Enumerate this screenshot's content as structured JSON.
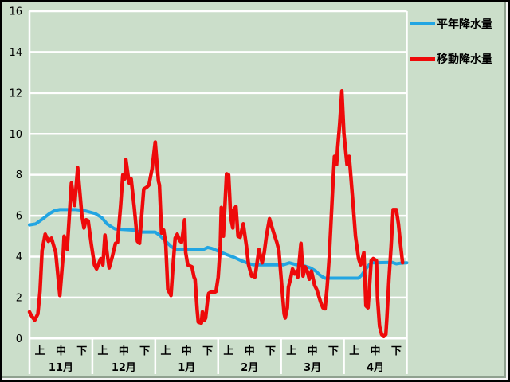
{
  "window": {
    "background_color": "#cbdeca",
    "gridline_color": "#ffffff",
    "text_color": "#000000"
  },
  "legend": {
    "items": [
      {
        "label": "平年降水量",
        "color": "#22a5e2"
      },
      {
        "label": "移動降水量",
        "color": "#ee0a0a"
      }
    ]
  },
  "chart_data": {
    "type": "line",
    "title": "",
    "xlabel": "",
    "ylabel": "",
    "ylim": [
      0,
      16
    ],
    "yticks": [
      0,
      2,
      4,
      6,
      8,
      10,
      12,
      14,
      16
    ],
    "grid": "horizontal-white-on-green",
    "legend_position": "right-outside-top",
    "x_axis": {
      "months": [
        "11月",
        "12月",
        "1月",
        "2月",
        "3月",
        "4月"
      ],
      "periods": [
        "上",
        "中",
        "下"
      ],
      "days_per_month": 30,
      "days_total": 180
    },
    "series": [
      {
        "name": "平年降水量",
        "color": "#22a5e2",
        "width": 4,
        "points": [
          [
            0,
            5.55
          ],
          [
            3,
            5.6
          ],
          [
            5,
            5.75
          ],
          [
            7,
            5.9
          ],
          [
            9.5,
            6.1
          ],
          [
            12,
            6.25
          ],
          [
            14.5,
            6.3
          ],
          [
            22,
            6.3
          ],
          [
            26,
            6.25
          ],
          [
            31.5,
            6.1
          ],
          [
            34.5,
            5.9
          ],
          [
            37,
            5.6
          ],
          [
            40,
            5.4
          ],
          [
            41,
            5.35
          ],
          [
            50,
            5.3
          ],
          [
            52.5,
            5.2
          ],
          [
            60,
            5.2
          ],
          [
            62,
            5.05
          ],
          [
            64.5,
            4.8
          ],
          [
            67.5,
            4.5
          ],
          [
            70,
            4.35
          ],
          [
            83,
            4.35
          ],
          [
            85,
            4.45
          ],
          [
            87,
            4.4
          ],
          [
            90.5,
            4.25
          ],
          [
            94,
            4.1
          ],
          [
            98,
            3.95
          ],
          [
            101,
            3.8
          ],
          [
            105,
            3.65
          ],
          [
            107,
            3.6
          ],
          [
            121,
            3.6
          ],
          [
            124,
            3.7
          ],
          [
            127.5,
            3.6
          ],
          [
            131,
            3.55
          ],
          [
            134,
            3.45
          ],
          [
            136.5,
            3.3
          ],
          [
            138.5,
            3.1
          ],
          [
            140,
            3.0
          ],
          [
            141,
            2.95
          ],
          [
            157,
            2.95
          ],
          [
            158.5,
            3.1
          ],
          [
            160.5,
            3.4
          ],
          [
            162,
            3.6
          ],
          [
            163.5,
            3.7
          ],
          [
            173,
            3.72
          ],
          [
            175,
            3.65
          ],
          [
            177,
            3.68
          ],
          [
            180,
            3.7
          ]
        ]
      },
      {
        "name": "移動降水量",
        "color": "#ee0a0a",
        "width": 4.5,
        "points": [
          [
            0,
            1.3
          ],
          [
            1,
            1.1
          ],
          [
            2.5,
            0.9
          ],
          [
            4,
            1.2
          ],
          [
            5,
            2.3
          ],
          [
            6,
            4.3
          ],
          [
            7.5,
            5.1
          ],
          [
            9,
            4.75
          ],
          [
            10.5,
            4.9
          ],
          [
            12.5,
            4.2
          ],
          [
            14.5,
            2.1
          ],
          [
            16,
            4.0
          ],
          [
            16.5,
            5.0
          ],
          [
            18,
            4.35
          ],
          [
            19,
            6.0
          ],
          [
            20,
            7.6
          ],
          [
            21.5,
            6.5
          ],
          [
            23,
            8.35
          ],
          [
            25,
            6.0
          ],
          [
            26,
            5.4
          ],
          [
            27,
            5.8
          ],
          [
            28,
            5.75
          ],
          [
            29.5,
            4.6
          ],
          [
            31,
            3.6
          ],
          [
            32,
            3.4
          ],
          [
            34,
            3.9
          ],
          [
            35,
            3.6
          ],
          [
            36,
            5.05
          ],
          [
            37,
            4.2
          ],
          [
            38,
            3.45
          ],
          [
            39.5,
            4.0
          ],
          [
            41,
            4.65
          ],
          [
            42,
            4.7
          ],
          [
            43.5,
            6.5
          ],
          [
            44.5,
            8.0
          ],
          [
            45.5,
            7.8
          ],
          [
            46,
            8.75
          ],
          [
            47.5,
            7.6
          ],
          [
            48.5,
            7.8
          ],
          [
            50,
            6.4
          ],
          [
            51.5,
            4.75
          ],
          [
            52.5,
            4.65
          ],
          [
            54.5,
            7.3
          ],
          [
            56,
            7.4
          ],
          [
            57,
            7.5
          ],
          [
            58.5,
            8.3
          ],
          [
            60,
            9.6
          ],
          [
            61.5,
            7.7
          ],
          [
            62,
            7.5
          ],
          [
            63,
            5.15
          ],
          [
            64,
            5.3
          ],
          [
            65,
            4.6
          ],
          [
            66,
            2.4
          ],
          [
            67.5,
            2.1
          ],
          [
            68.5,
            3.6
          ],
          [
            69.5,
            4.9
          ],
          [
            70.5,
            5.1
          ],
          [
            71.5,
            4.8
          ],
          [
            72.5,
            4.7
          ],
          [
            73,
            5.0
          ],
          [
            74,
            5.8
          ],
          [
            74.5,
            4.2
          ],
          [
            75.5,
            3.6
          ],
          [
            76.5,
            3.55
          ],
          [
            77.5,
            3.5
          ],
          [
            78.5,
            3.0
          ],
          [
            79,
            2.9
          ],
          [
            80,
            1.4
          ],
          [
            80.5,
            0.8
          ],
          [
            82,
            0.75
          ],
          [
            82.5,
            1.3
          ],
          [
            83.5,
            0.9
          ],
          [
            84,
            1.0
          ],
          [
            85,
            1.9
          ],
          [
            85.5,
            2.2
          ],
          [
            87,
            2.3
          ],
          [
            88,
            2.25
          ],
          [
            89,
            2.3
          ],
          [
            90,
            3.0
          ],
          [
            91,
            4.5
          ],
          [
            91.5,
            6.4
          ],
          [
            92.5,
            5.0
          ],
          [
            93,
            6.0
          ],
          [
            94,
            8.05
          ],
          [
            95,
            8.0
          ],
          [
            95.5,
            7.0
          ],
          [
            96,
            5.9
          ],
          [
            97,
            5.4
          ],
          [
            97.5,
            6.3
          ],
          [
            98.5,
            6.45
          ],
          [
            99.5,
            5.0
          ],
          [
            100.5,
            4.95
          ],
          [
            102,
            5.6
          ],
          [
            103.5,
            4.5
          ],
          [
            104.5,
            3.6
          ],
          [
            106,
            3.05
          ],
          [
            106.5,
            3.1
          ],
          [
            107.5,
            3.0
          ],
          [
            108,
            3.3
          ],
          [
            109.5,
            4.35
          ],
          [
            111,
            3.7
          ],
          [
            112,
            4.2
          ],
          [
            113,
            5.0
          ],
          [
            114.5,
            5.85
          ],
          [
            115.5,
            5.5
          ],
          [
            117,
            5.0
          ],
          [
            118,
            4.7
          ],
          [
            119,
            4.3
          ],
          [
            120,
            3.0
          ],
          [
            121.5,
            1.2
          ],
          [
            122,
            1.0
          ],
          [
            123,
            1.5
          ],
          [
            123.5,
            2.5
          ],
          [
            124.5,
            2.9
          ],
          [
            125.5,
            3.4
          ],
          [
            126.5,
            3.15
          ],
          [
            127.5,
            3.3
          ],
          [
            128,
            3.0
          ],
          [
            129.5,
            4.65
          ],
          [
            130.5,
            3.05
          ],
          [
            131.5,
            3.5
          ],
          [
            132.5,
            3.3
          ],
          [
            133.5,
            2.9
          ],
          [
            134.5,
            3.3
          ],
          [
            135.5,
            2.85
          ],
          [
            136,
            2.6
          ],
          [
            137,
            2.4
          ],
          [
            139,
            1.75
          ],
          [
            140,
            1.5
          ],
          [
            141,
            1.45
          ],
          [
            142,
            2.5
          ],
          [
            143,
            4.0
          ],
          [
            144,
            6.0
          ],
          [
            145,
            8.0
          ],
          [
            145.5,
            8.9
          ],
          [
            146.5,
            8.5
          ],
          [
            147,
            9.3
          ],
          [
            148,
            10.5
          ],
          [
            149,
            12.1
          ],
          [
            150,
            10.0
          ],
          [
            151.5,
            8.5
          ],
          [
            152.5,
            8.9
          ],
          [
            153,
            8.3
          ],
          [
            154.5,
            6.4
          ],
          [
            155.5,
            5.0
          ],
          [
            157,
            3.9
          ],
          [
            158,
            3.6
          ],
          [
            158.5,
            3.8
          ],
          [
            159.5,
            4.2
          ],
          [
            160.5,
            1.6
          ],
          [
            161.5,
            1.5
          ],
          [
            162,
            2.2
          ],
          [
            163,
            3.8
          ],
          [
            164,
            3.9
          ],
          [
            165.5,
            3.8
          ],
          [
            166,
            2.0
          ],
          [
            167,
            0.6
          ],
          [
            168,
            0.2
          ],
          [
            169,
            0.1
          ],
          [
            170,
            0.2
          ],
          [
            170.5,
            1.0
          ],
          [
            171.5,
            2.9
          ],
          [
            172.5,
            4.5
          ],
          [
            173.5,
            6.3
          ],
          [
            175,
            6.3
          ],
          [
            176,
            5.6
          ],
          [
            177,
            4.6
          ],
          [
            178,
            3.7
          ]
        ]
      }
    ]
  }
}
